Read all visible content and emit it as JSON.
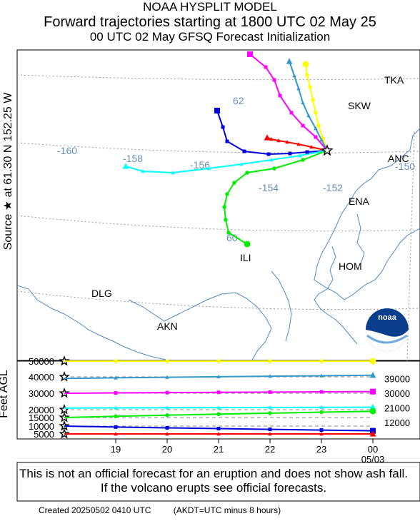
{
  "header": {
    "line1": "NOAA HYSPLIT MODEL",
    "line2": "Forward trajectories starting at 1800 UTC 02 May 25",
    "line3": "00 UTC 02 May    GFSQ  Forecast Initialization"
  },
  "side_label": "Source ★ at  61.30 N  152.25 W",
  "feet_label": "Feet AGL",
  "map": {
    "place_labels": [
      "TKA",
      "SKW",
      "ANC",
      "ENA",
      "HOM",
      "ILI",
      "DLG",
      "AKN"
    ],
    "grid_labels": [
      "62",
      "-160",
      "-158",
      "-156",
      "-154",
      "-152",
      "-150",
      "60"
    ]
  },
  "logo_text": "noaa",
  "chart_data": {
    "type": "line",
    "title": "Forward trajectories starting at 1800 UTC 02 May 25",
    "ylabel": "Feet AGL",
    "y_ticks": [
      "50000",
      "40000",
      "30000",
      "20000",
      "15000",
      "10000",
      "5000"
    ],
    "x_ticks": [
      "19",
      "20",
      "21",
      "22",
      "23",
      "00"
    ],
    "x_sub": "05/03",
    "right_labels": [
      "39000",
      "30000",
      "21000",
      "12000"
    ],
    "series": [
      {
        "name": "",
        "color": "#ffff00",
        "marker": "circle",
        "start_ft": 50000,
        "end_ft": 50000
      },
      {
        "name": "",
        "color": "#3399cc",
        "marker": "triangle",
        "start_ft": 39000,
        "end_ft": 41000
      },
      {
        "name": "",
        "color": "#ff00ff",
        "marker": "square",
        "start_ft": 30000,
        "end_ft": 31000
      },
      {
        "name": "",
        "color": "#00ffff",
        "marker": "triangle",
        "start_ft": 21000,
        "end_ft": 21500
      },
      {
        "name": "",
        "color": "#00ee00",
        "marker": "circle",
        "start_ft": 15000,
        "end_ft": 19000
      },
      {
        "name": "",
        "color": "#0000dd",
        "marker": "square",
        "start_ft": 10000,
        "end_ft": 7000
      },
      {
        "name": "",
        "color": "#ff0000",
        "marker": "triangle",
        "start_ft": 5000,
        "end_ft": 5000
      }
    ]
  },
  "disclaimer": "This is not an official forecast for an eruption and does not show ash fall. If the volcano erupts see official forecasts.",
  "footer": {
    "created": "Created 20250502 0410 UTC",
    "note": "(AKDT=UTC minus 8 hours)"
  }
}
